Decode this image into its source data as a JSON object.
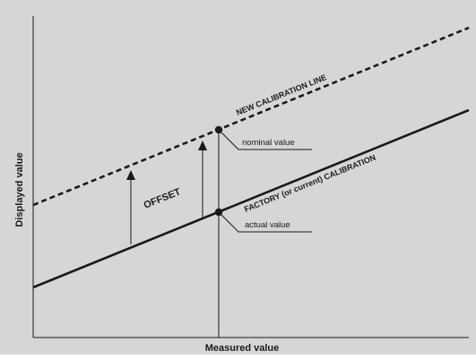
{
  "diagram": {
    "axes": {
      "y_label": "Displayed value",
      "x_label": "Measured value"
    },
    "lines": {
      "new_calibration": "NEW CALIBRATION LINE",
      "factory_calibration": "FACTORY (or current) CALIBRATION"
    },
    "annotations": {
      "offset": "OFFSET",
      "nominal_value": "nominal value",
      "actual_value": "actual value"
    },
    "colors": {
      "background": "#d6d6d6",
      "ink": "#1a1a1a"
    }
  }
}
